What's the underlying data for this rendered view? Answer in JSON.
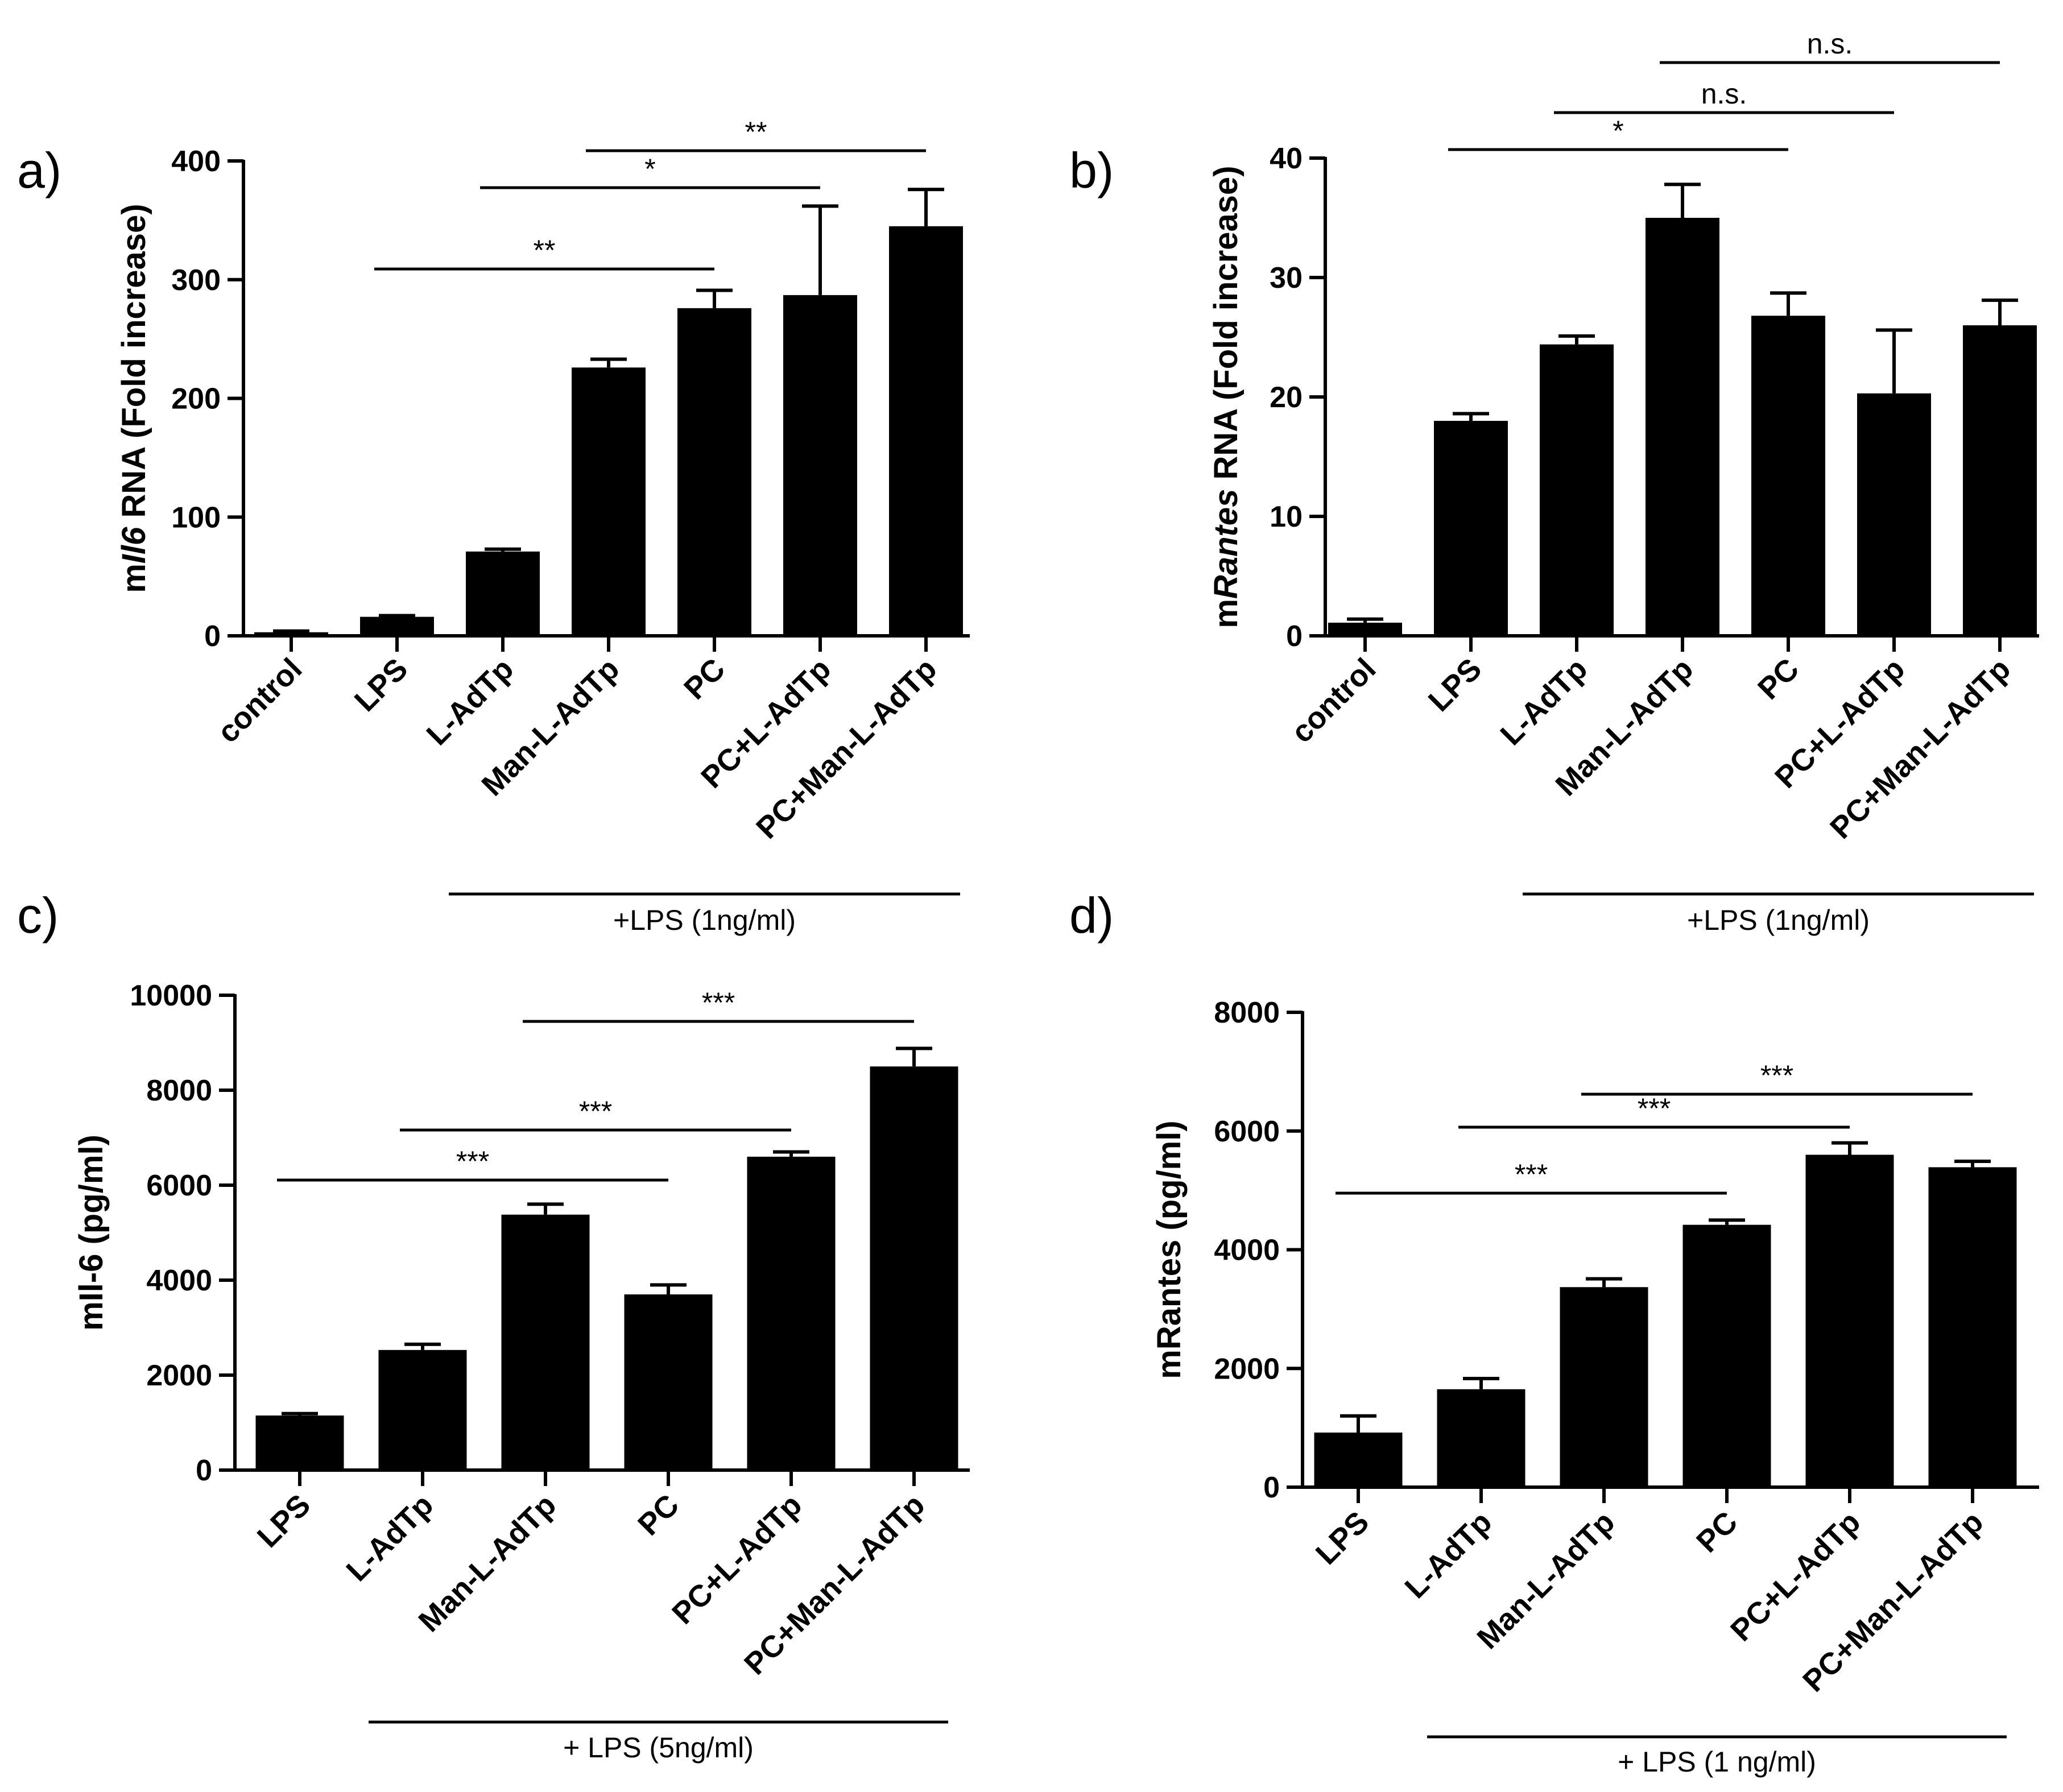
{
  "chart_data": [
    {
      "type": "bar",
      "panel": "a)",
      "ylabel_prefix": "m",
      "ylabel_italic": "Il6",
      "ylabel_suffix": " RNA (Fold increase)",
      "ylim": [
        0,
        400
      ],
      "yticks": [
        0,
        100,
        200,
        300,
        400
      ],
      "categories": [
        "control",
        "LPS",
        "L-AdTp",
        "Man-L-AdTp",
        "PC",
        "PC+L-AdTp",
        "PC+Man-L-AdTp"
      ],
      "values": [
        3,
        16,
        71,
        226,
        276,
        287,
        345
      ],
      "errors": [
        1,
        1,
        2,
        7,
        15,
        75,
        31
      ],
      "significance": [
        {
          "from": 1,
          "to": 4,
          "label": "**"
        },
        {
          "from": 2,
          "to": 5,
          "label": "*"
        },
        {
          "from": 3,
          "to": 6,
          "label": "**"
        }
      ],
      "group_label": "+LPS (1ng/ml)",
      "group_range": [
        2,
        6
      ]
    },
    {
      "type": "bar",
      "panel": "b)",
      "ylabel_prefix": "m",
      "ylabel_italic": "Rantes",
      "ylabel_suffix": " RNA (Fold increase)",
      "ylim": [
        0,
        40
      ],
      "yticks": [
        0,
        10,
        20,
        30,
        40
      ],
      "categories": [
        "control",
        "LPS",
        "L-AdTp",
        "Man-L-AdTp",
        "PC",
        "PC+L-AdTp",
        "PC+Man-L-AdTp"
      ],
      "values": [
        1.1,
        18,
        24.4,
        35,
        26.8,
        20.3,
        26
      ],
      "errors": [
        0.3,
        0.6,
        0.7,
        2.8,
        1.9,
        5.3,
        2.1
      ],
      "significance": [
        {
          "from": 1,
          "to": 4,
          "label": "*"
        },
        {
          "from": 2,
          "to": 5,
          "label": "n.s."
        },
        {
          "from": 3,
          "to": 6,
          "label": "n.s."
        }
      ],
      "group_label": "+LPS (1ng/ml)",
      "group_range": [
        2,
        6
      ]
    },
    {
      "type": "bar",
      "panel": "c)",
      "ylabel": "mIl-6 (pg/ml)",
      "ylim": [
        0,
        10000
      ],
      "yticks": [
        0,
        2000,
        4000,
        6000,
        8000,
        10000
      ],
      "categories": [
        "LPS",
        "L-AdTp",
        "Man-L-AdTp",
        "PC",
        "PC+L-AdTp",
        "PC+Man-L-AdTp"
      ],
      "values": [
        1150,
        2530,
        5380,
        3700,
        6600,
        8500
      ],
      "errors": [
        40,
        120,
        220,
        200,
        100,
        380
      ],
      "significance": [
        {
          "from": 0,
          "to": 3,
          "label": "***"
        },
        {
          "from": 1,
          "to": 4,
          "label": "***"
        },
        {
          "from": 2,
          "to": 5,
          "label": "***"
        }
      ],
      "group_label": "+ LPS (5ng/ml)",
      "group_range": [
        1,
        5
      ]
    },
    {
      "type": "bar",
      "panel": "d)",
      "ylabel": "mRantes (pg/ml)",
      "ylim": [
        0,
        8000
      ],
      "yticks": [
        0,
        2000,
        4000,
        6000,
        8000
      ],
      "categories": [
        "LPS",
        "L-AdTp",
        "Man-L-AdTp",
        "PC",
        "PC+L-AdTp",
        "PC+Man-L-AdTp"
      ],
      "values": [
        920,
        1650,
        3370,
        4420,
        5600,
        5390
      ],
      "errors": [
        280,
        180,
        140,
        80,
        200,
        100
      ],
      "significance": [
        {
          "from": 0,
          "to": 3,
          "label": "***"
        },
        {
          "from": 1,
          "to": 4,
          "label": "***"
        },
        {
          "from": 2,
          "to": 5,
          "label": "***"
        }
      ],
      "group_label": "+ LPS (1 ng/ml)",
      "group_range": [
        1,
        5
      ]
    }
  ]
}
